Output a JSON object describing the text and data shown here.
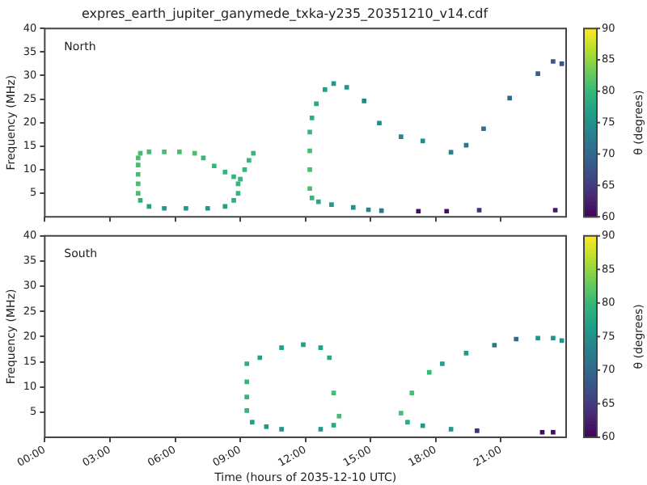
{
  "chart_data": [
    {
      "type": "scatter",
      "title": "expres_earth_jupiter_ganymede_txka-y235_20351210_v14.cdf",
      "ylabel": "Frequency (MHz)",
      "clabel": "θ (degrees)",
      "annotations": [
        "North"
      ],
      "tick_labels": "y",
      "marker": "square",
      "grid": false,
      "xlim": [
        0,
        24
      ],
      "xticks": [
        {
          "value": 0,
          "label": null
        },
        {
          "value": 3,
          "label": null
        },
        {
          "value": 6,
          "label": null
        },
        {
          "value": 9,
          "label": null
        },
        {
          "value": 12,
          "label": null
        },
        {
          "value": 15,
          "label": null
        },
        {
          "value": 18,
          "label": null
        },
        {
          "value": 21,
          "label": null
        }
      ],
      "ylim": [
        0,
        40
      ],
      "yticks": [
        5,
        10,
        15,
        20,
        25,
        30,
        35,
        40
      ],
      "clim": [
        60,
        90
      ],
      "cticks": [
        60,
        65,
        70,
        75,
        80,
        85,
        90
      ],
      "series": [
        {
          "x": [
            4.4,
            4.8,
            5.5,
            6.2,
            6.9,
            7.3,
            7.8,
            8.3,
            8.7,
            8.9,
            8.9,
            8.7,
            8.3,
            7.5,
            6.5,
            5.5,
            4.8,
            4.4,
            4.3,
            4.3,
            4.3,
            4.3,
            4.3,
            9.0,
            9.2,
            9.4,
            9.6,
            12.2,
            12.2,
            12.2,
            12.2,
            12.3,
            12.5,
            12.9,
            13.3,
            13.9,
            14.7,
            15.4,
            16.4,
            17.4,
            18.7,
            19.4,
            20.2,
            21.4,
            22.7,
            23.4,
            23.8,
            12.3,
            12.6,
            13.2,
            14.2,
            14.9,
            15.5,
            17.2,
            18.5,
            20.0,
            23.5
          ],
          "values": [
            13.5,
            13.8,
            13.8,
            13.8,
            13.5,
            12.5,
            10.8,
            9.5,
            8.5,
            7,
            5,
            3.5,
            2.2,
            1.8,
            1.8,
            1.8,
            2.2,
            3.5,
            5,
            7,
            9,
            11,
            12.5,
            8,
            10,
            12,
            13.5,
            6,
            10,
            14,
            18,
            21,
            24,
            27,
            28.3,
            27.5,
            24.6,
            19.9,
            17,
            16.1,
            13.7,
            15.2,
            18.7,
            25.2,
            30.4,
            33,
            32.5,
            4,
            3.2,
            2.6,
            2,
            1.5,
            1.3,
            1.2,
            1.2,
            1.4,
            1.4
          ],
          "cvalues": [
            81,
            81,
            81,
            81,
            81,
            80,
            80,
            80,
            80,
            80,
            80,
            79,
            77,
            76,
            76,
            76,
            77,
            79,
            81,
            81,
            81,
            81,
            81,
            80,
            80,
            80,
            80,
            81,
            81,
            81,
            80,
            79,
            78,
            77,
            76,
            75,
            74,
            74,
            74,
            74,
            73,
            72,
            71,
            70,
            69,
            68,
            68,
            80,
            78,
            76,
            75,
            74,
            72,
            61,
            61,
            64,
            62
          ]
        }
      ]
    },
    {
      "type": "scatter",
      "xlabel": "Time (hours of 2035-12-10 UTC)",
      "ylabel": "Frequency (MHz)",
      "clabel": "θ (degrees)",
      "annotations": [
        "South"
      ],
      "marker": "square",
      "grid": false,
      "xlim": [
        0,
        24
      ],
      "xticks": [
        {
          "value": 0,
          "label": "00:00"
        },
        {
          "value": 3,
          "label": "03:00"
        },
        {
          "value": 6,
          "label": "06:00"
        },
        {
          "value": 9,
          "label": "09:00"
        },
        {
          "value": 12,
          "label": "12:00"
        },
        {
          "value": 15,
          "label": "15:00"
        },
        {
          "value": 18,
          "label": "18:00"
        },
        {
          "value": 21,
          "label": "21:00"
        }
      ],
      "ylim": [
        0,
        40
      ],
      "yticks": [
        5,
        10,
        15,
        20,
        25,
        30,
        35,
        40
      ],
      "clim": [
        60,
        90
      ],
      "cticks": [
        60,
        65,
        70,
        75,
        80,
        85,
        90
      ],
      "series": [
        {
          "x": [
            9.3,
            9.3,
            9.3,
            9.3,
            9.9,
            10.9,
            11.9,
            12.7,
            13.1,
            13.3,
            13.55,
            13.3,
            12.7,
            10.9,
            10.2,
            9.55,
            16.4,
            16.9,
            17.7,
            18.3,
            19.4,
            20.7,
            21.7,
            22.7,
            23.4,
            23.8,
            16.7,
            17.4,
            18.7,
            19.9,
            22.9,
            23.4
          ],
          "values": [
            5.3,
            8,
            11,
            14.6,
            15.8,
            17.8,
            18.4,
            17.8,
            15.8,
            8.8,
            4.2,
            2.4,
            1.6,
            1.6,
            2.1,
            3.0,
            4.8,
            8.8,
            12.9,
            14.6,
            16.7,
            18.3,
            19.5,
            19.7,
            19.7,
            19.2,
            3.0,
            2.3,
            1.6,
            1.3,
            1.0,
            1.0
          ],
          "cvalues": [
            80,
            80,
            80,
            79,
            77,
            77,
            77,
            77,
            78,
            81,
            81,
            78,
            76,
            76,
            76,
            77,
            81,
            81,
            80,
            77,
            76,
            72,
            70,
            75,
            75,
            75,
            78,
            76,
            76,
            64,
            61,
            61
          ]
        }
      ]
    }
  ]
}
